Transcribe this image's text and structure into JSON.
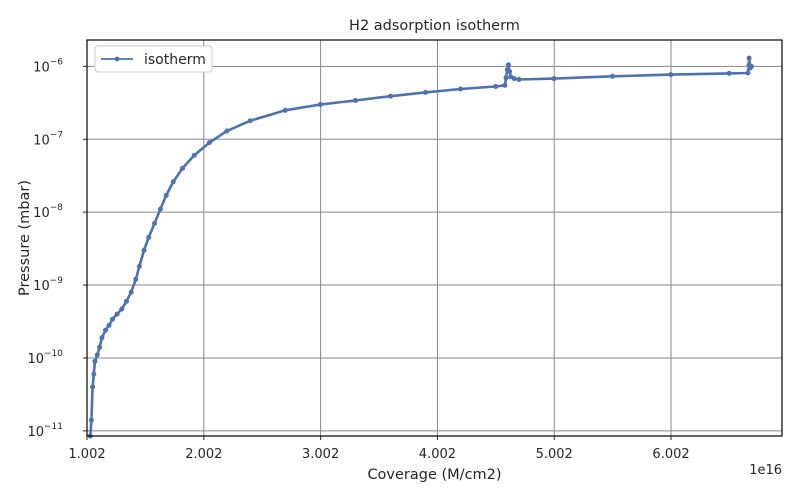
{
  "chart_data": {
    "type": "line",
    "title": "H2 adsorption isotherm",
    "xlabel": "Coverage (M/cm2)",
    "ylabel": "Pressure (mbar)",
    "x_offset_label": "1e16",
    "xlim": [
      1.002e+16,
      6.952e+16
    ],
    "ylim": [
      8.5e-12,
      2.3e-06
    ],
    "yscale": "log",
    "x_ticks": [
      {
        "value": 1.002e+16,
        "label": "1.002"
      },
      {
        "value": 2.002e+16,
        "label": "2.002"
      },
      {
        "value": 3.002e+16,
        "label": "3.002"
      },
      {
        "value": 4.002e+16,
        "label": "4.002"
      },
      {
        "value": 5.002e+16,
        "label": "5.002"
      },
      {
        "value": 6.002e+16,
        "label": "6.002"
      }
    ],
    "y_ticks": [
      {
        "value": 1e-11,
        "base": "10",
        "exp": "−11"
      },
      {
        "value": 1e-10,
        "base": "10",
        "exp": "−10"
      },
      {
        "value": 1e-09,
        "base": "10",
        "exp": "−9"
      },
      {
        "value": 1e-08,
        "base": "10",
        "exp": "−8"
      },
      {
        "value": 1e-07,
        "base": "10",
        "exp": "−7"
      },
      {
        "value": 1e-06,
        "base": "10",
        "exp": "−6"
      }
    ],
    "grid": true,
    "legend": {
      "position": "upper-left"
    },
    "series": [
      {
        "name": "isotherm",
        "color": "#4c72b0",
        "points": [
          [
            1.03e+16,
            5e-12
          ],
          [
            1.04e+16,
            1.4e-11
          ],
          [
            1.05e+16,
            4e-11
          ],
          [
            1.06e+16,
            6e-11
          ],
          [
            1.07e+16,
            9e-11
          ],
          [
            1.09e+16,
            1.1e-10
          ],
          [
            1.11e+16,
            1.4e-10
          ],
          [
            1.13e+16,
            1.9e-10
          ],
          [
            1.16e+16,
            2.4e-10
          ],
          [
            1.19e+16,
            2.8e-10
          ],
          [
            1.22e+16,
            3.4e-10
          ],
          [
            1.26e+16,
            4e-10
          ],
          [
            1.3e+16,
            4.7e-10
          ],
          [
            1.34e+16,
            6e-10
          ],
          [
            1.38e+16,
            8e-10
          ],
          [
            1.42e+16,
            1.2e-09
          ],
          [
            1.45e+16,
            1.8e-09
          ],
          [
            1.49e+16,
            3e-09
          ],
          [
            1.53e+16,
            4.5e-09
          ],
          [
            1.58e+16,
            7e-09
          ],
          [
            1.63e+16,
            1.1e-08
          ],
          [
            1.68e+16,
            1.7e-08
          ],
          [
            1.74e+16,
            2.6e-08
          ],
          [
            1.82e+16,
            4e-08
          ],
          [
            1.92e+16,
            6e-08
          ],
          [
            2.05e+16,
            9e-08
          ],
          [
            2.2e+16,
            1.3e-07
          ],
          [
            2.4e+16,
            1.8e-07
          ],
          [
            2.7e+16,
            2.5e-07
          ],
          [
            3e+16,
            3e-07
          ],
          [
            3.3e+16,
            3.4e-07
          ],
          [
            3.6e+16,
            3.9e-07
          ],
          [
            3.9e+16,
            4.4e-07
          ],
          [
            4.2e+16,
            4.9e-07
          ],
          [
            4.5e+16,
            5.3e-07
          ],
          [
            4.58e+16,
            5.5e-07
          ],
          [
            4.59e+16,
            7e-07
          ],
          [
            4.6e+16,
            9e-07
          ],
          [
            4.61e+16,
            1.05e-06
          ],
          [
            4.62e+16,
            8.5e-07
          ],
          [
            4.63e+16,
            7.2e-07
          ],
          [
            4.66e+16,
            6.8e-07
          ],
          [
            4.7e+16,
            6.6e-07
          ],
          [
            5e+16,
            6.8e-07
          ],
          [
            5.5e+16,
            7.3e-07
          ],
          [
            6e+16,
            7.7e-07
          ],
          [
            6.5e+16,
            8e-07
          ],
          [
            6.66e+16,
            8.1e-07
          ],
          [
            6.67e+16,
            1.05e-06
          ],
          [
            6.67e+16,
            1.3e-06
          ],
          [
            6.68e+16,
            9.5e-07
          ],
          [
            6.69e+16,
            1e-06
          ]
        ]
      }
    ]
  }
}
